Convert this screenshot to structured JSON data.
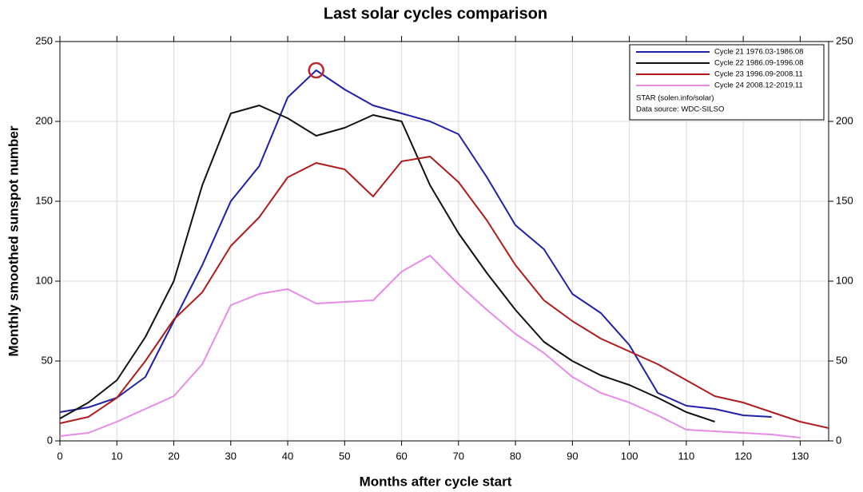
{
  "chart_data": {
    "type": "line",
    "title": "Last solar cycles comparison",
    "x_label": "Months after cycle start",
    "y_label": "Monthly smoothed sunspot number",
    "x": [
      0,
      5,
      10,
      15,
      20,
      25,
      30,
      35,
      40,
      45,
      50,
      55,
      60,
      65,
      70,
      75,
      80,
      85,
      90,
      95,
      100,
      105,
      110,
      115,
      120,
      125,
      130,
      135
    ],
    "series": [
      {
        "name": "Cycle 21 1976.03-1986.08",
        "color": "#1f1fa8",
        "values": [
          18,
          21,
          27,
          40,
          75,
          110,
          150,
          172,
          215,
          232,
          220,
          210,
          205,
          200,
          192,
          165,
          135,
          120,
          92,
          80,
          60,
          30,
          22,
          20,
          16,
          15,
          null,
          null
        ]
      },
      {
        "name": "Cycle 22 1986.09-1996.08",
        "color": "#111111",
        "values": [
          14,
          24,
          38,
          65,
          100,
          160,
          205,
          210,
          202,
          191,
          196,
          204,
          200,
          160,
          130,
          105,
          82,
          62,
          50,
          41,
          35,
          27,
          18,
          12,
          null,
          null,
          null,
          null
        ]
      },
      {
        "name": "Cycle 23 1996.09-2008.11",
        "color": "#b01c1c",
        "values": [
          11,
          15,
          27,
          50,
          76,
          93,
          122,
          140,
          165,
          174,
          170,
          153,
          175,
          178,
          162,
          138,
          110,
          88,
          75,
          64,
          56,
          48,
          38,
          28,
          24,
          18,
          12,
          8
        ]
      },
      {
        "name": "Cycle 24 2008.12-2019.11",
        "color": "#e88be8",
        "values": [
          3,
          5,
          12,
          20,
          28,
          48,
          85,
          92,
          95,
          86,
          87,
          88,
          106,
          116,
          98,
          82,
          67,
          55,
          40,
          30,
          24,
          16,
          7,
          6,
          5,
          4,
          2,
          null
        ]
      }
    ],
    "notes": [
      "STAR (solen.info/solar)",
      "Data source: WDC-SILSO"
    ],
    "peak_marker": {
      "series": 0,
      "index": 9,
      "color": "#c0282d"
    },
    "xlim": [
      0,
      135
    ],
    "ylim": [
      0,
      250
    ],
    "xticks": [
      0,
      10,
      20,
      30,
      40,
      50,
      60,
      70,
      80,
      90,
      100,
      110,
      120,
      130
    ],
    "yticks": [
      0,
      50,
      100,
      150,
      200,
      250
    ],
    "y2lim": [
      0,
      250
    ],
    "y2ticks": [
      0,
      50,
      100,
      150,
      200,
      250
    ],
    "grid": true,
    "legend": "upper right"
  }
}
